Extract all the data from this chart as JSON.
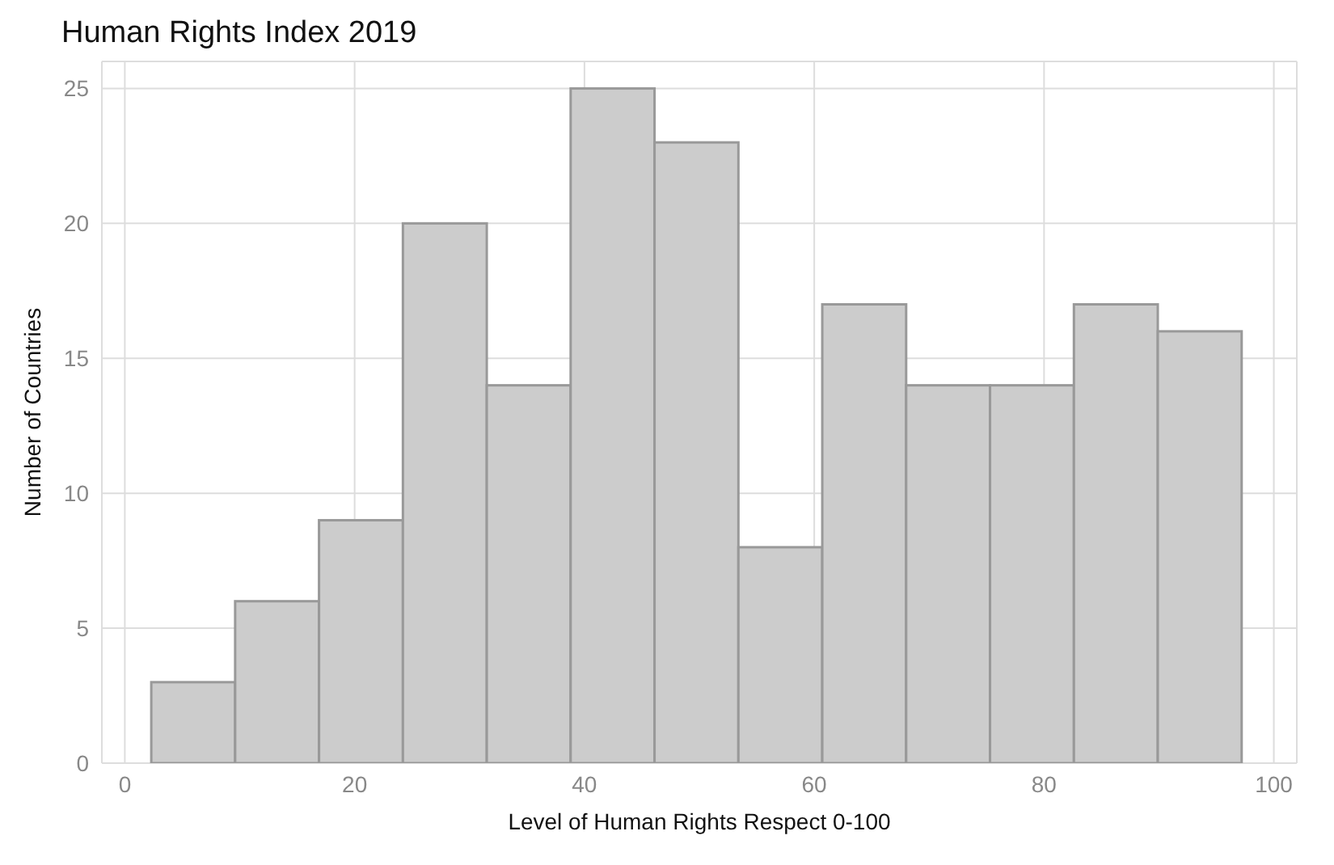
{
  "chart_data": {
    "type": "histogram",
    "title": "Human Rights Index 2019",
    "xlabel": "Level of Human Rights Respect 0-100",
    "ylabel": "Number of Countries",
    "bins": [
      2.3,
      9.6,
      16.9,
      24.2,
      31.5,
      38.8,
      46.1,
      53.4,
      60.7,
      68.0,
      75.3,
      82.6,
      89.9,
      97.2
    ],
    "values": [
      3,
      6,
      9,
      20,
      14,
      25,
      23,
      8,
      17,
      14,
      14,
      17,
      16
    ],
    "color": "#cccccc",
    "xlim": [
      -2,
      102
    ],
    "xticks": [
      0,
      20,
      40,
      60,
      80,
      100
    ],
    "ylim": [
      0,
      26
    ],
    "yticks": [
      0,
      5,
      10,
      15,
      20,
      25
    ],
    "grid": true
  }
}
